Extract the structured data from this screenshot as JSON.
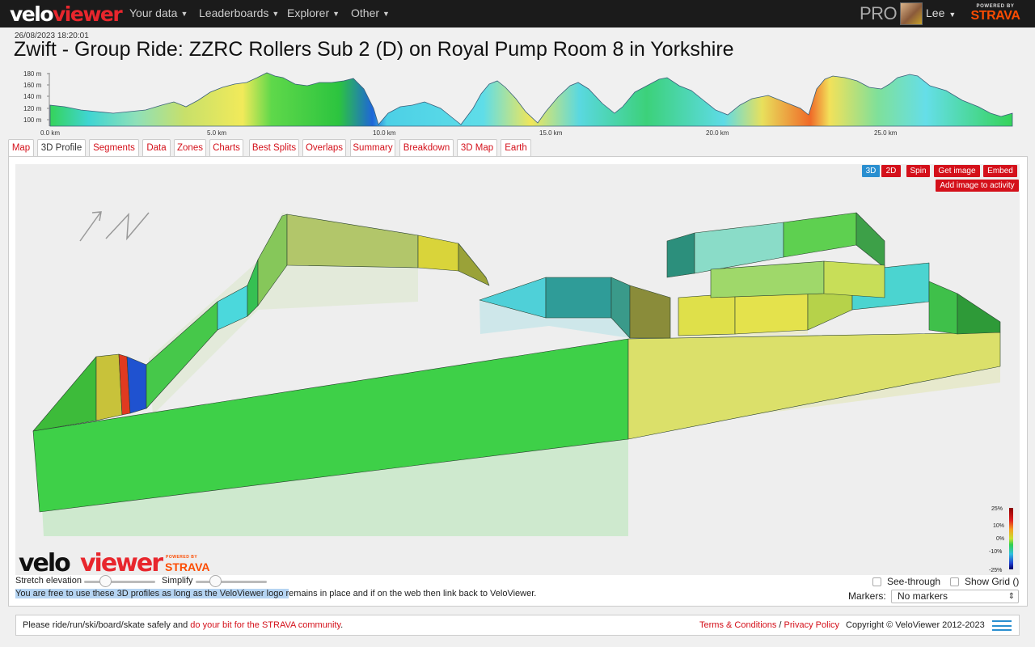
{
  "header": {
    "logo_a": "velo",
    "logo_b": "viewer",
    "nav": [
      {
        "label": "Your data"
      },
      {
        "label": "Leaderboards"
      },
      {
        "label": "Explorer"
      },
      {
        "label": "Other"
      }
    ],
    "pro": "PRO",
    "user": "Lee",
    "powered_small": "POWERED BY",
    "powered_brand": "STRAVA"
  },
  "activity": {
    "date": "26/08/2023 18:20:01",
    "title": "Zwift - Group Ride: ZZRC Rollers Sub 2 (D) on Royal Pump Room 8 in Yorkshire"
  },
  "mini_profile": {
    "y_ticks": [
      "180 m",
      "160 m",
      "140 m",
      "120 m",
      "100 m"
    ],
    "x_ticks": [
      "0.0 km",
      "5.0 km",
      "10.0 km",
      "15.0 km",
      "20.0 km",
      "25.0 km"
    ]
  },
  "tabs": [
    {
      "label": "Map"
    },
    {
      "label": "3D Profile"
    },
    {
      "label": "Segments"
    },
    {
      "label": "Data"
    },
    {
      "label": "Zones"
    },
    {
      "label": "Charts"
    },
    {
      "label": "Best Splits"
    },
    {
      "label": "Overlaps"
    },
    {
      "label": "Summary"
    },
    {
      "label": "Breakdown"
    },
    {
      "label": "3D Map"
    },
    {
      "label": "Earth"
    }
  ],
  "active_tab": "3D Profile",
  "viewer": {
    "btn_3d": "3D",
    "btn_2d": "2D",
    "btn_spin": "Spin",
    "btn_get_image": "Get image",
    "btn_embed": "Embed",
    "btn_add_image": "Add image to activity",
    "legend": [
      "25%",
      "10%",
      "0%",
      "-10%",
      "-25%"
    ],
    "wm_a": "velo",
    "wm_b": "viewer",
    "wm_powered": "POWERED BY",
    "wm_strava": "STRAVA"
  },
  "controls": {
    "stretch_label": "Stretch elevation",
    "simplify_label": "Simplify",
    "see_through": "See-through",
    "show_grid": "Show Grid ()",
    "markers_label": "Markers:",
    "markers_value": "No markers",
    "notice_highlight": "You are free to use these 3D profiles as long as the VeloViewer logo r",
    "notice_rest": "emains in place and if on the web then link back to VeloViewer."
  },
  "footer": {
    "left_text": "Please ride/run/ski/board/skate safely and ",
    "left_link": "do your bit for the STRAVA community",
    "left_end": ".",
    "terms": "Terms & Conditions",
    "sep": " / ",
    "privacy": "Privacy Policy",
    "copyright": "Copyright © VeloViewer 2012-2023"
  },
  "colors": {
    "brand_red": "#d4101a",
    "strava_orange": "#fc4c02",
    "active_blue": "#2a8fd0"
  }
}
